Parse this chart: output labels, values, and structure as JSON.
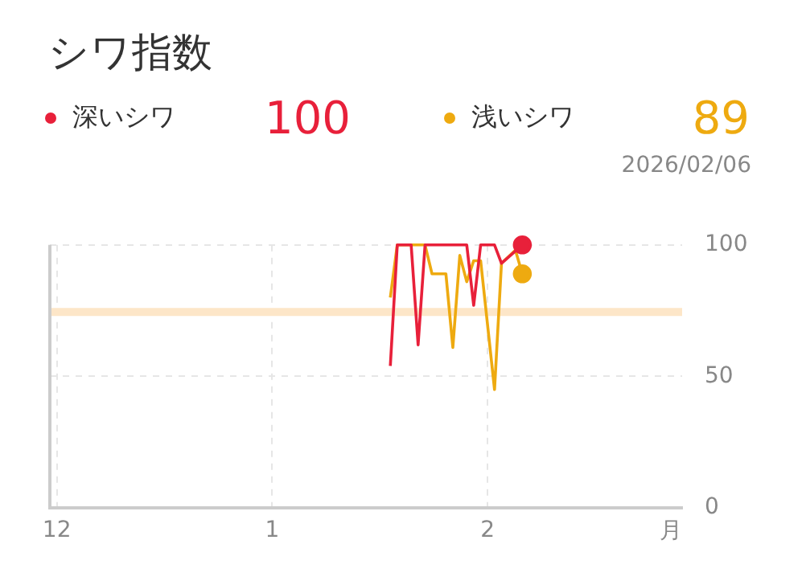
{
  "chart_data": {
    "type": "line",
    "title": "シワ指数",
    "series": [
      {
        "name": "深いシワ",
        "color": "#e8203a",
        "x": [
          "2026-01-18",
          "2026-01-19",
          "2026-01-21",
          "2026-01-22",
          "2026-01-23",
          "2026-01-29",
          "2026-01-30",
          "2026-01-31",
          "2026-02-02",
          "2026-02-03",
          "2026-02-06"
        ],
        "values": [
          54,
          100,
          100,
          62,
          100,
          100,
          77,
          100,
          100,
          93,
          100
        ]
      },
      {
        "name": "浅いシワ",
        "color": "#eeaa10",
        "x": [
          "2026-01-18",
          "2026-01-19",
          "2026-01-23",
          "2026-01-24",
          "2026-01-26",
          "2026-01-27",
          "2026-01-28",
          "2026-01-29",
          "2026-01-30",
          "2026-01-31",
          "2026-02-02",
          "2026-02-03",
          "2026-02-05",
          "2026-02-06"
        ],
        "values": [
          80,
          100,
          100,
          89,
          89,
          61,
          96,
          86,
          94,
          94,
          45,
          93,
          98,
          89
        ]
      }
    ],
    "annotations": [
      "100",
      "89",
      "2026/02/06"
    ],
    "xlabel": "月",
    "xlim": [
      "2025-11-30",
      "2026-03-01"
    ],
    "xticks": [
      {
        "value": "2025-12-01",
        "label": "12"
      },
      {
        "value": "2026-01-01",
        "label": "1"
      },
      {
        "value": "2026-02-01",
        "label": "2"
      }
    ],
    "ylim": [
      0,
      100
    ],
    "yticks": [
      0,
      50,
      100
    ],
    "bands": [
      {
        "axis": "y",
        "from": 73,
        "to": 76,
        "color": "#fde6c8"
      }
    ],
    "grid": true,
    "legend": "top left",
    "line_style": "solid"
  }
}
